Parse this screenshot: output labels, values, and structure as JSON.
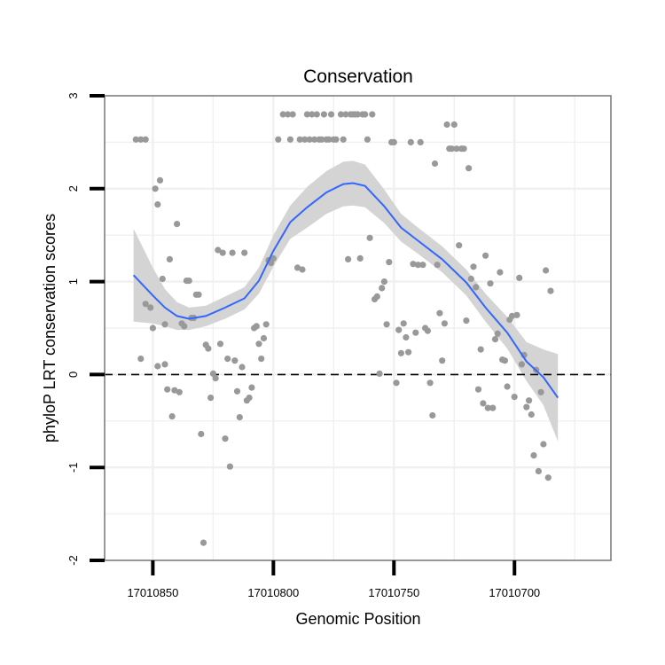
{
  "chart_data": {
    "type": "scatter",
    "title": "Conservation",
    "xlabel": "Genomic Position",
    "ylabel": "phyloP LRT conservation scores",
    "x_reversed": true,
    "xlim": [
      17010870,
      17010660
    ],
    "ylim": [
      -2,
      3
    ],
    "xticks": [
      17010850,
      17010800,
      17010750,
      17010700
    ],
    "xtick_labels": [
      "17010850",
      "17010800",
      "17010750",
      "17010700"
    ],
    "yticks": [
      -2,
      -1,
      0,
      1,
      2,
      3
    ],
    "ytick_labels": [
      "-2",
      "-1",
      "0",
      "1",
      "2",
      "3"
    ],
    "grid": true,
    "reference_line": {
      "y": 0,
      "style": "dashed",
      "color": "#000000"
    },
    "colors": {
      "points": "#999999",
      "smooth_line": "#3366ff",
      "confidence_band": "#d4d4d4",
      "panel_background": "#ffffff",
      "grid": "#f0f0f0",
      "panel_border": "#7f7f7f"
    },
    "points": [
      [
        17010857,
        2.53
      ],
      [
        17010855,
        2.53
      ],
      [
        17010853,
        2.53
      ],
      [
        17010855,
        0.17
      ],
      [
        17010853,
        0.76
      ],
      [
        17010851,
        0.72
      ],
      [
        17010850,
        0.5
      ],
      [
        17010849,
        2.0
      ],
      [
        17010848,
        1.83
      ],
      [
        17010847,
        2.09
      ],
      [
        17010848,
        0.09
      ],
      [
        17010846,
        1.03
      ],
      [
        17010845,
        0.11
      ],
      [
        17010845,
        0.54
      ],
      [
        17010844,
        -0.16
      ],
      [
        17010843,
        1.24
      ],
      [
        17010842,
        -0.45
      ],
      [
        17010841,
        -0.17
      ],
      [
        17010840,
        1.62
      ],
      [
        17010839,
        -0.19
      ],
      [
        17010838,
        0.55
      ],
      [
        17010837,
        0.52
      ],
      [
        17010836,
        1.01
      ],
      [
        17010835,
        1.01
      ],
      [
        17010834,
        0.61
      ],
      [
        17010833,
        0.61
      ],
      [
        17010832,
        0.86
      ],
      [
        17010831,
        0.86
      ],
      [
        17010830,
        -0.64
      ],
      [
        17010829,
        -1.81
      ],
      [
        17010828,
        0.32
      ],
      [
        17010827,
        0.28
      ],
      [
        17010826,
        -0.25
      ],
      [
        17010825,
        0.01
      ],
      [
        17010824,
        -0.04
      ],
      [
        17010823,
        1.34
      ],
      [
        17010822,
        0.33
      ],
      [
        17010821,
        1.31
      ],
      [
        17010820,
        -0.69
      ],
      [
        17010819,
        0.17
      ],
      [
        17010818,
        -0.99
      ],
      [
        17010817,
        1.31
      ],
      [
        17010816,
        0.15
      ],
      [
        17010815,
        -0.18
      ],
      [
        17010814,
        -0.46
      ],
      [
        17010813,
        0.08
      ],
      [
        17010812,
        1.31
      ],
      [
        17010811,
        -0.28
      ],
      [
        17010810,
        -0.25
      ],
      [
        17010809,
        -0.14
      ],
      [
        17010808,
        0.5
      ],
      [
        17010807,
        0.52
      ],
      [
        17010806,
        0.33
      ],
      [
        17010805,
        0.17
      ],
      [
        17010804,
        0.39
      ],
      [
        17010803,
        0.54
      ],
      [
        17010802,
        1.23
      ],
      [
        17010801,
        1.2
      ],
      [
        17010800,
        1.25
      ],
      [
        17010798,
        2.53
      ],
      [
        17010796,
        2.8
      ],
      [
        17010794,
        2.8
      ],
      [
        17010793,
        2.53
      ],
      [
        17010792,
        2.8
      ],
      [
        17010790,
        1.15
      ],
      [
        17010789,
        2.53
      ],
      [
        17010788,
        1.13
      ],
      [
        17010787,
        2.53
      ],
      [
        17010786,
        2.8
      ],
      [
        17010785,
        2.53
      ],
      [
        17010784,
        2.8
      ],
      [
        17010783,
        2.53
      ],
      [
        17010782,
        2.8
      ],
      [
        17010781,
        2.53
      ],
      [
        17010780,
        2.53
      ],
      [
        17010779,
        2.8
      ],
      [
        17010778,
        2.53
      ],
      [
        17010777,
        2.53
      ],
      [
        17010776,
        2.8
      ],
      [
        17010775,
        2.53
      ],
      [
        17010774,
        2.53
      ],
      [
        17010772,
        2.8
      ],
      [
        17010771,
        2.53
      ],
      [
        17010770,
        2.8
      ],
      [
        17010769,
        1.24
      ],
      [
        17010768,
        2.8
      ],
      [
        17010767,
        2.8
      ],
      [
        17010766,
        2.8
      ],
      [
        17010765,
        2.8
      ],
      [
        17010764,
        1.25
      ],
      [
        17010763,
        2.8
      ],
      [
        17010762,
        2.8
      ],
      [
        17010761,
        2.53
      ],
      [
        17010760,
        1.47
      ],
      [
        17010759,
        2.8
      ],
      [
        17010758,
        0.81
      ],
      [
        17010757,
        0.84
      ],
      [
        17010756,
        0.01
      ],
      [
        17010755,
        0.93
      ],
      [
        17010754,
        1.0
      ],
      [
        17010753,
        0.54
      ],
      [
        17010752,
        1.21
      ],
      [
        17010751,
        2.5
      ],
      [
        17010750,
        2.5
      ],
      [
        17010749,
        -0.09
      ],
      [
        17010748,
        0.48
      ],
      [
        17010747,
        0.23
      ],
      [
        17010746,
        0.55
      ],
      [
        17010745,
        0.4
      ],
      [
        17010744,
        0.24
      ],
      [
        17010743,
        2.5
      ],
      [
        17010742,
        1.19
      ],
      [
        17010741,
        0.45
      ],
      [
        17010740,
        1.18
      ],
      [
        17010739,
        2.5
      ],
      [
        17010738,
        1.18
      ],
      [
        17010737,
        0.5
      ],
      [
        17010736,
        0.47
      ],
      [
        17010735,
        -0.09
      ],
      [
        17010734,
        -0.44
      ],
      [
        17010733,
        2.27
      ],
      [
        17010732,
        1.18
      ],
      [
        17010731,
        0.66
      ],
      [
        17010730,
        0.15
      ],
      [
        17010729,
        0.55
      ],
      [
        17010728,
        2.69
      ],
      [
        17010727,
        2.43
      ],
      [
        17010726,
        2.43
      ],
      [
        17010725,
        2.69
      ],
      [
        17010724,
        2.43
      ],
      [
        17010723,
        1.39
      ],
      [
        17010722,
        2.43
      ],
      [
        17010721,
        2.43
      ],
      [
        17010720,
        0.58
      ],
      [
        17010719,
        2.22
      ],
      [
        17010718,
        1.03
      ],
      [
        17010717,
        1.16
      ],
      [
        17010716,
        0.94
      ],
      [
        17010715,
        -0.16
      ],
      [
        17010714,
        0.27
      ],
      [
        17010713,
        -0.31
      ],
      [
        17010712,
        1.28
      ],
      [
        17010711,
        -0.36
      ],
      [
        17010710,
        0.98
      ],
      [
        17010709,
        -0.36
      ],
      [
        17010708,
        0.38
      ],
      [
        17010707,
        0.44
      ],
      [
        17010706,
        1.1
      ],
      [
        17010705,
        0.16
      ],
      [
        17010704,
        0.15
      ],
      [
        17010703,
        -0.13
      ],
      [
        17010702,
        0.59
      ],
      [
        17010701,
        0.63
      ],
      [
        17010700,
        -0.24
      ],
      [
        17010699,
        0.64
      ],
      [
        17010698,
        1.04
      ],
      [
        17010697,
        0.11
      ],
      [
        17010696,
        0.21
      ],
      [
        17010695,
        -0.35
      ],
      [
        17010694,
        -0.28
      ],
      [
        17010693,
        -0.43
      ],
      [
        17010692,
        -0.87
      ],
      [
        17010691,
        0.05
      ],
      [
        17010690,
        -1.04
      ],
      [
        17010689,
        -0.19
      ],
      [
        17010688,
        -0.75
      ],
      [
        17010687,
        1.12
      ],
      [
        17010686,
        -1.11
      ],
      [
        17010685,
        0.9
      ]
    ],
    "smooth_curve": [
      [
        17010858,
        1.07
      ],
      [
        17010850,
        0.85
      ],
      [
        17010845,
        0.72
      ],
      [
        17010840,
        0.63
      ],
      [
        17010835,
        0.6
      ],
      [
        17010828,
        0.63
      ],
      [
        17010820,
        0.72
      ],
      [
        17010812,
        0.82
      ],
      [
        17010806,
        1.01
      ],
      [
        17010800,
        1.33
      ],
      [
        17010793,
        1.64
      ],
      [
        17010786,
        1.8
      ],
      [
        17010778,
        1.96
      ],
      [
        17010771,
        2.05
      ],
      [
        17010767,
        2.06
      ],
      [
        17010762,
        2.03
      ],
      [
        17010754,
        1.81
      ],
      [
        17010747,
        1.58
      ],
      [
        17010740,
        1.44
      ],
      [
        17010730,
        1.24
      ],
      [
        17010720,
        0.99
      ],
      [
        17010712,
        0.72
      ],
      [
        17010703,
        0.45
      ],
      [
        17010695,
        0.14
      ],
      [
        17010688,
        -0.03
      ],
      [
        17010682,
        -0.25
      ]
    ],
    "band_upper": [
      [
        17010858,
        1.57
      ],
      [
        17010850,
        1.15
      ],
      [
        17010845,
        0.92
      ],
      [
        17010840,
        0.78
      ],
      [
        17010835,
        0.72
      ],
      [
        17010828,
        0.74
      ],
      [
        17010820,
        0.84
      ],
      [
        17010812,
        0.94
      ],
      [
        17010806,
        1.15
      ],
      [
        17010800,
        1.5
      ],
      [
        17010793,
        1.82
      ],
      [
        17010786,
        2.02
      ],
      [
        17010778,
        2.19
      ],
      [
        17010771,
        2.29
      ],
      [
        17010767,
        2.3
      ],
      [
        17010762,
        2.26
      ],
      [
        17010754,
        1.99
      ],
      [
        17010747,
        1.73
      ],
      [
        17010740,
        1.58
      ],
      [
        17010730,
        1.38
      ],
      [
        17010720,
        1.13
      ],
      [
        17010712,
        0.87
      ],
      [
        17010703,
        0.62
      ],
      [
        17010695,
        0.35
      ],
      [
        17010688,
        0.27
      ],
      [
        17010682,
        0.22
      ]
    ],
    "band_lower": [
      [
        17010858,
        0.57
      ],
      [
        17010850,
        0.55
      ],
      [
        17010845,
        0.52
      ],
      [
        17010840,
        0.48
      ],
      [
        17010835,
        0.48
      ],
      [
        17010828,
        0.52
      ],
      [
        17010820,
        0.6
      ],
      [
        17010812,
        0.7
      ],
      [
        17010806,
        0.87
      ],
      [
        17010800,
        1.16
      ],
      [
        17010793,
        1.46
      ],
      [
        17010786,
        1.58
      ],
      [
        17010778,
        1.73
      ],
      [
        17010771,
        1.81
      ],
      [
        17010767,
        1.82
      ],
      [
        17010762,
        1.8
      ],
      [
        17010754,
        1.63
      ],
      [
        17010747,
        1.43
      ],
      [
        17010740,
        1.3
      ],
      [
        17010730,
        1.1
      ],
      [
        17010720,
        0.85
      ],
      [
        17010712,
        0.57
      ],
      [
        17010703,
        0.28
      ],
      [
        17010695,
        -0.07
      ],
      [
        17010688,
        -0.33
      ],
      [
        17010682,
        -0.72
      ]
    ]
  }
}
